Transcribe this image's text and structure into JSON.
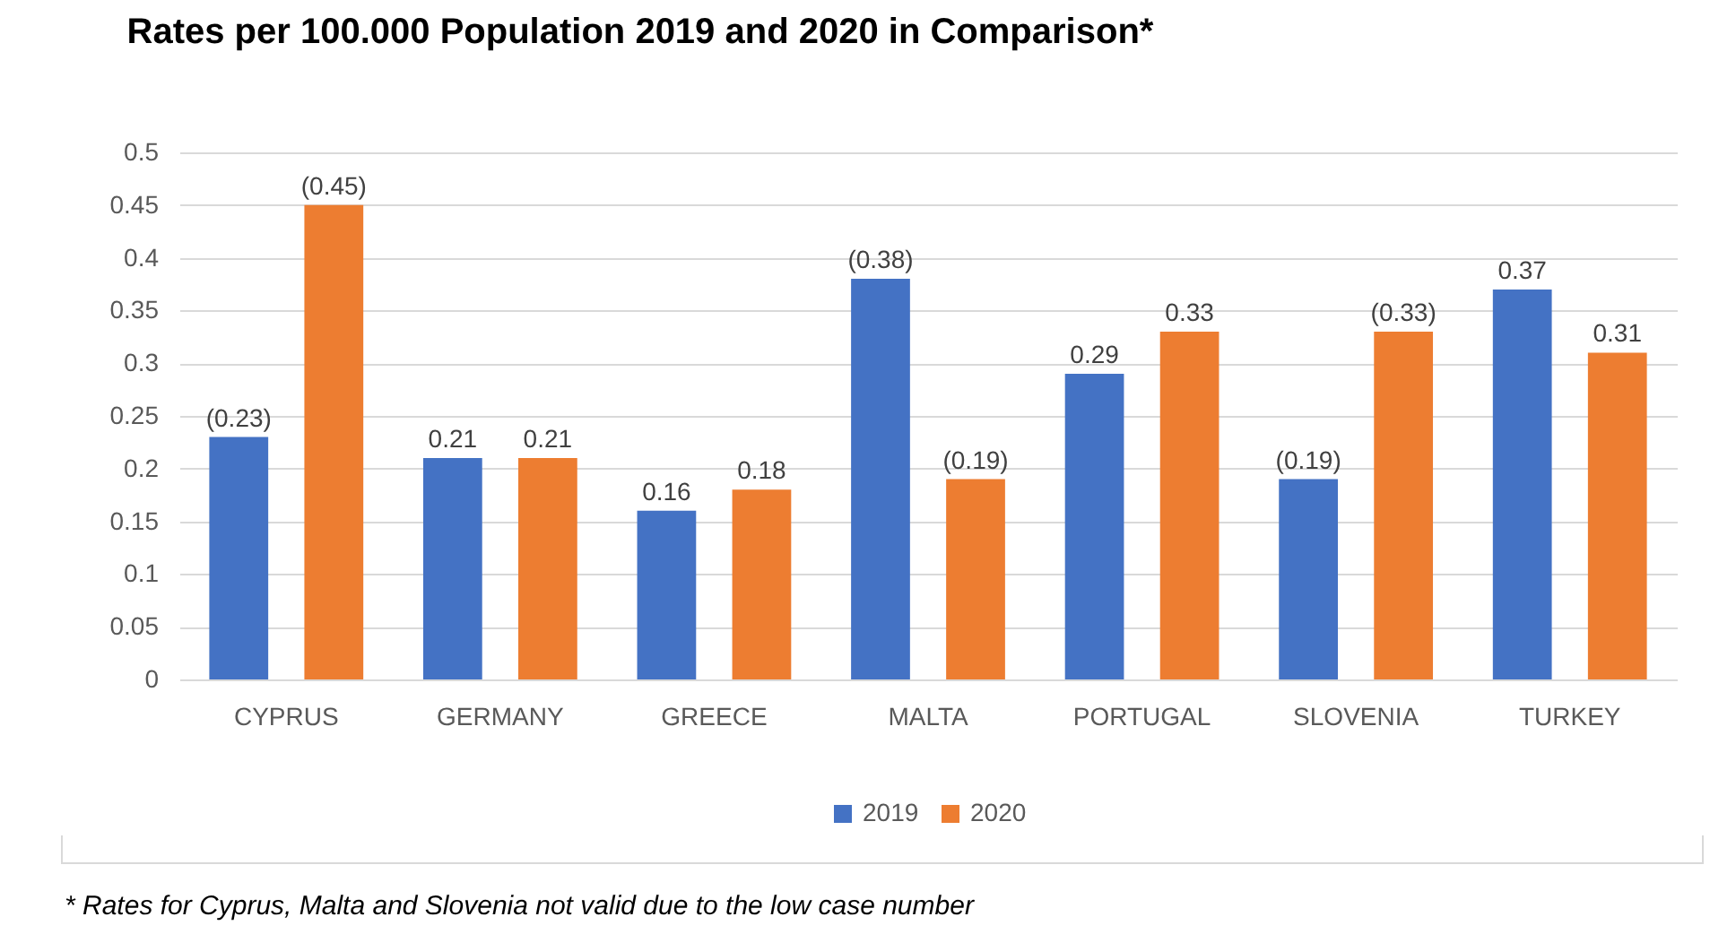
{
  "chart_data": {
    "type": "bar",
    "title": "Rates per 100.000 Population 2019 and 2020 in Comparison*",
    "categories": [
      "CYPRUS",
      "GERMANY",
      "GREECE",
      "MALTA",
      "PORTUGAL",
      "SLOVENIA",
      "TURKEY"
    ],
    "series": [
      {
        "name": "2019",
        "color": "#4472c4",
        "values": [
          0.23,
          0.21,
          0.16,
          0.38,
          0.29,
          0.19,
          0.37
        ],
        "value_labels": [
          "(0.23)",
          "0.21",
          "0.16",
          "(0.38)",
          "0.29",
          "(0.19)",
          "0.37"
        ]
      },
      {
        "name": "2020",
        "color": "#ed7d31",
        "values": [
          0.45,
          0.21,
          0.18,
          0.19,
          0.33,
          0.33,
          0.31
        ],
        "value_labels": [
          "(0.45)",
          "0.21",
          "0.18",
          "(0.19)",
          "0.33",
          "(0.33)",
          "0.31"
        ]
      }
    ],
    "ylim": [
      0,
      0.5
    ],
    "yticks": [
      0,
      0.05,
      0.1,
      0.15,
      0.2,
      0.25,
      0.3,
      0.35,
      0.4,
      0.45,
      0.5
    ],
    "grid": true,
    "legend": "bottom",
    "annotations": [
      "* Rates for Cyprus, Malta and Slovenia not valid due to the low case number"
    ]
  }
}
